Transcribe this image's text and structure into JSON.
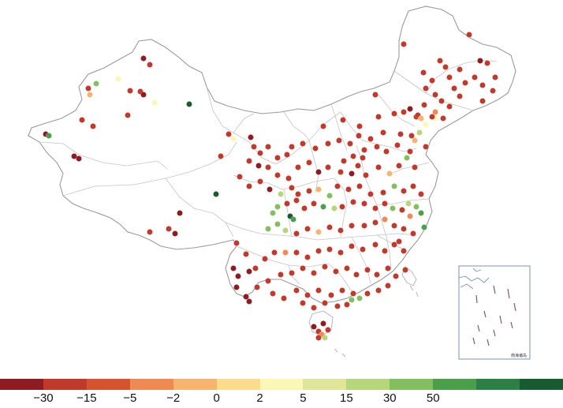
{
  "legend": {
    "colors": [
      "#8e1a22",
      "#c0392b",
      "#d7532f",
      "#ef8a52",
      "#f7b46f",
      "#fbdc8c",
      "#fcf7b6",
      "#dfe69a",
      "#b5d67a",
      "#84bf5f",
      "#4b9e4a",
      "#2d8045",
      "#175c30"
    ],
    "ticks": [
      "−30",
      "−15",
      "−5",
      "−2",
      "0",
      "2",
      "5",
      "15",
      "30",
      "50"
    ]
  },
  "inset": {
    "label": "南海诸岛"
  },
  "points": [
    [
      -15,
      595,
      44
    ],
    [
      -15,
      512,
      56
    ],
    [
      -15,
      558,
      77
    ],
    [
      -30,
      609,
      77
    ],
    [
      -15,
      618,
      80
    ],
    [
      -15,
      565,
      85
    ],
    [
      -15,
      583,
      88
    ],
    [
      -15,
      537,
      92
    ],
    [
      -15,
      570,
      98
    ],
    [
      -15,
      602,
      98
    ],
    [
      -15,
      628,
      98
    ],
    [
      -15,
      548,
      102
    ],
    [
      -15,
      590,
      105
    ],
    [
      -15,
      612,
      108
    ],
    [
      -15,
      540,
      112
    ],
    [
      -15,
      576,
      112
    ],
    [
      -15,
      625,
      115
    ],
    [
      -15,
      552,
      120
    ],
    [
      -15,
      583,
      122
    ],
    [
      -15,
      560,
      128
    ],
    [
      -15,
      612,
      128
    ],
    [
      -15,
      538,
      133
    ],
    [
      -15,
      570,
      135
    ],
    [
      -5,
      552,
      142
    ],
    [
      2,
      552,
      150
    ],
    [
      -15,
      562,
      150
    ],
    [
      -15,
      528,
      148
    ],
    [
      -30,
      182,
      74
    ],
    [
      -15,
      190,
      82
    ],
    [
      15,
      122,
      106
    ],
    [
      2,
      150,
      100
    ],
    [
      -15,
      112,
      112
    ],
    [
      -2,
      114,
      120
    ],
    [
      -15,
      165,
      115
    ],
    [
      -15,
      178,
      116
    ],
    [
      -30,
      182,
      120
    ],
    [
      2,
      196,
      130
    ],
    [
      50,
      240,
      132
    ],
    [
      -15,
      162,
      146
    ],
    [
      -15,
      104,
      152
    ],
    [
      -15,
      118,
      160
    ],
    [
      -30,
      58,
      170
    ],
    [
      30,
      62,
      172
    ],
    [
      -30,
      94,
      198
    ],
    [
      -30,
      100,
      201
    ],
    [
      -15,
      476,
      120
    ],
    [
      -15,
      410,
      160
    ],
    [
      -15,
      435,
      152
    ],
    [
      -15,
      456,
      160
    ],
    [
      -15,
      480,
      148
    ],
    [
      -15,
      500,
      144
    ],
    [
      -15,
      512,
      142
    ],
    [
      -30,
      520,
      138
    ],
    [
      -15,
      530,
      146
    ],
    [
      -2,
      534,
      150
    ],
    [
      2,
      540,
      158
    ],
    [
      -15,
      548,
      148
    ],
    [
      -15,
      455,
      172
    ],
    [
      -15,
      470,
      176
    ],
    [
      -15,
      486,
      168
    ],
    [
      -15,
      508,
      170
    ],
    [
      -15,
      522,
      172
    ],
    [
      -2,
      526,
      178
    ],
    [
      5,
      532,
      168
    ],
    [
      -15,
      540,
      186
    ],
    [
      -15,
      520,
      192
    ],
    [
      -15,
      504,
      184
    ],
    [
      -15,
      490,
      192
    ],
    [
      -15,
      478,
      186
    ],
    [
      -15,
      462,
      190
    ],
    [
      -15,
      444,
      182
    ],
    [
      -15,
      430,
      178
    ],
    [
      -15,
      416,
      182
    ],
    [
      -15,
      400,
      188
    ],
    [
      -15,
      384,
      182
    ],
    [
      -15,
      370,
      186
    ],
    [
      -15,
      364,
      196
    ],
    [
      -15,
      352,
      200
    ],
    [
      -30,
      404,
      218
    ],
    [
      -15,
      416,
      212
    ],
    [
      -15,
      432,
      218
    ],
    [
      -30,
      446,
      220
    ],
    [
      -15,
      454,
      210
    ],
    [
      -15,
      464,
      222
    ],
    [
      -15,
      480,
      212
    ],
    [
      -2,
      494,
      220
    ],
    [
      -15,
      506,
      210
    ],
    [
      15,
      516,
      200
    ],
    [
      -15,
      526,
      212
    ],
    [
      -15,
      460,
      200
    ],
    [
      -15,
      448,
      198
    ],
    [
      -15,
      436,
      204
    ],
    [
      -15,
      392,
      206
    ],
    [
      -15,
      378,
      212
    ],
    [
      -15,
      366,
      226
    ],
    [
      -15,
      290,
      170
    ],
    [
      2,
      296,
      176
    ],
    [
      -30,
      318,
      174
    ],
    [
      -15,
      322,
      186
    ],
    [
      -15,
      330,
      194
    ],
    [
      -15,
      340,
      186
    ],
    [
      -15,
      280,
      198
    ],
    [
      -15,
      316,
      204
    ],
    [
      -30,
      328,
      210
    ],
    [
      -15,
      340,
      212
    ],
    [
      -15,
      352,
      222
    ],
    [
      -15,
      304,
      224
    ],
    [
      50,
      274,
      246
    ],
    [
      -15,
      316,
      236
    ],
    [
      -15,
      330,
      230
    ],
    [
      -30,
      342,
      240
    ],
    [
      -15,
      456,
      236
    ],
    [
      -15,
      442,
      240
    ],
    [
      -15,
      428,
      236
    ],
    [
      15,
      418,
      248
    ],
    [
      -2,
      404,
      240
    ],
    [
      -15,
      392,
      242
    ],
    [
      -15,
      378,
      246
    ],
    [
      -15,
      370,
      238
    ],
    [
      -15,
      470,
      246
    ],
    [
      -15,
      486,
      244
    ],
    [
      15,
      500,
      236
    ],
    [
      -15,
      512,
      242
    ],
    [
      -15,
      524,
      236
    ],
    [
      -15,
      534,
      246
    ],
    [
      5,
      518,
      258
    ],
    [
      15,
      528,
      262
    ],
    [
      30,
      534,
      270
    ],
    [
      -5,
      520,
      274
    ],
    [
      -15,
      510,
      266
    ],
    [
      15,
      498,
      264
    ],
    [
      -15,
      488,
      258
    ],
    [
      -15,
      476,
      264
    ],
    [
      -15,
      462,
      258
    ],
    [
      -15,
      448,
      256
    ],
    [
      -15,
      434,
      262
    ],
    [
      5,
      424,
      264
    ],
    [
      30,
      410,
      262
    ],
    [
      -15,
      398,
      258
    ],
    [
      -15,
      386,
      264
    ],
    [
      -15,
      376,
      254
    ],
    [
      -15,
      364,
      258
    ],
    [
      5,
      356,
      246
    ],
    [
      15,
      352,
      262
    ],
    [
      50,
      368,
      274
    ],
    [
      30,
      372,
      278
    ],
    [
      15,
      346,
      270
    ],
    [
      15,
      352,
      284
    ],
    [
      15,
      340,
      290
    ],
    [
      5,
      362,
      292
    ],
    [
      -15,
      376,
      296
    ],
    [
      -15,
      390,
      290
    ],
    [
      -2,
      404,
      294
    ],
    [
      -15,
      418,
      288
    ],
    [
      -15,
      432,
      292
    ],
    [
      -15,
      446,
      286
    ],
    [
      -15,
      462,
      286
    ],
    [
      -15,
      476,
      282
    ],
    [
      -5,
      488,
      278
    ],
    [
      -15,
      500,
      286
    ],
    [
      -15,
      512,
      290
    ],
    [
      -15,
      524,
      296
    ],
    [
      30,
      538,
      288
    ],
    [
      -30,
      228,
      270
    ],
    [
      -15,
      214,
      290
    ],
    [
      -30,
      222,
      296
    ],
    [
      -15,
      190,
      294
    ],
    [
      -15,
      300,
      308
    ],
    [
      -15,
      312,
      322
    ],
    [
      -30,
      296,
      340
    ],
    [
      -30,
      302,
      350
    ],
    [
      -30,
      316,
      344
    ],
    [
      -15,
      324,
      340
    ],
    [
      -15,
      336,
      328
    ],
    [
      -15,
      348,
      320
    ],
    [
      -5,
      362,
      320
    ],
    [
      -15,
      376,
      320
    ],
    [
      -15,
      390,
      326
    ],
    [
      -15,
      404,
      318
    ],
    [
      -15,
      418,
      316
    ],
    [
      -15,
      432,
      320
    ],
    [
      -15,
      446,
      312
    ],
    [
      -15,
      460,
      316
    ],
    [
      -15,
      476,
      310
    ],
    [
      -15,
      488,
      318
    ],
    [
      -15,
      500,
      310
    ],
    [
      -15,
      512,
      318
    ],
    [
      -15,
      506,
      306
    ],
    [
      -30,
      300,
      364
    ],
    [
      -30,
      312,
      376
    ],
    [
      -30,
      316,
      382
    ],
    [
      -15,
      326,
      364
    ],
    [
      -15,
      340,
      356
    ],
    [
      -15,
      356,
      348
    ],
    [
      -15,
      370,
      346
    ],
    [
      -15,
      384,
      340
    ],
    [
      -15,
      398,
      346
    ],
    [
      -15,
      412,
      338
    ],
    [
      -15,
      426,
      344
    ],
    [
      -15,
      440,
      340
    ],
    [
      -15,
      452,
      348
    ],
    [
      -15,
      466,
      342
    ],
    [
      -15,
      478,
      348
    ],
    [
      -15,
      492,
      340
    ],
    [
      -15,
      502,
      350
    ],
    [
      -15,
      514,
      342
    ],
    [
      -15,
      346,
      372
    ],
    [
      -15,
      360,
      378
    ],
    [
      -15,
      376,
      368
    ],
    [
      -15,
      390,
      374
    ],
    [
      -15,
      404,
      368
    ],
    [
      -15,
      420,
      374
    ],
    [
      -15,
      434,
      368
    ],
    [
      -15,
      448,
      372
    ],
    [
      15,
      456,
      378
    ],
    [
      15,
      446,
      380
    ],
    [
      -15,
      466,
      372
    ],
    [
      -15,
      480,
      368
    ],
    [
      -15,
      492,
      362
    ],
    [
      -15,
      384,
      384
    ],
    [
      -15,
      398,
      390
    ],
    [
      -15,
      412,
      384
    ],
    [
      -15,
      428,
      388
    ],
    [
      -15,
      440,
      386
    ],
    [
      -30,
      398,
      414
    ],
    [
      -15,
      404,
      420
    ],
    [
      -5,
      408,
      424
    ],
    [
      5,
      412,
      428
    ],
    [
      -15,
      416,
      418
    ],
    [
      -30,
      410,
      410
    ],
    [
      -15,
      404,
      428
    ]
  ]
}
